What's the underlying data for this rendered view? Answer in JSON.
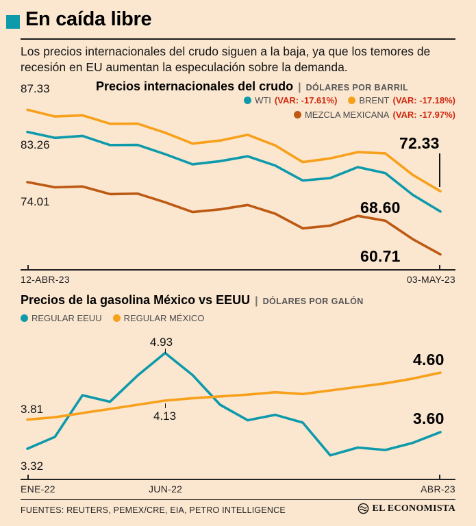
{
  "page": {
    "background": "#fbe7d0",
    "accent_teal": "#0e9aab",
    "accent_orange": "#f7a01b",
    "accent_brown": "#bc5a14",
    "accent_red": "#cf2a0e"
  },
  "header": {
    "title": "En caída libre",
    "subtitle": "Los precios internacionales del crudo siguen a la baja, ya que los temores de recesión en EU aumentan la especulación sobre la demanda."
  },
  "chart_data": [
    {
      "type": "line",
      "title": "Precios internacionales del crudo",
      "separator": "|",
      "unit": "DÓLARES POR BARRIL",
      "x_axis": {
        "first": "12-ABR-23",
        "last": "03-MAY-23"
      },
      "ylim": [
        59.5,
        88.5
      ],
      "grid": false,
      "legend_position": "top-right",
      "series": [
        {
          "name": "WTI",
          "var": "(VAR: -17.61%)",
          "color": "#0e9aab",
          "first_label": "83.26",
          "last_label": "68.60",
          "values": [
            83.26,
            82.16,
            82.52,
            80.83,
            80.86,
            79.16,
            77.29,
            77.87,
            78.76,
            77.07,
            74.3,
            74.76,
            76.78,
            75.66,
            71.66,
            68.6
          ]
        },
        {
          "name": "BRENT",
          "var": "(VAR: -17.18%)",
          "color": "#f7a01b",
          "first_label": "87.33",
          "last_label": "72.33",
          "values": [
            87.33,
            86.09,
            86.31,
            84.76,
            84.77,
            83.12,
            81.1,
            81.66,
            82.73,
            80.77,
            77.69,
            78.37,
            79.54,
            79.31,
            75.32,
            72.33
          ]
        },
        {
          "name": "MEZCLA MEXICANA",
          "var": "(VAR: -17.97%)",
          "color": "#bc5a14",
          "first_label": "74.01",
          "last_label": "60.71",
          "values": [
            74.01,
            73.05,
            73.2,
            71.8,
            71.9,
            70.3,
            68.5,
            69.0,
            69.8,
            68.2,
            65.5,
            66.0,
            67.8,
            66.9,
            63.5,
            60.71
          ]
        }
      ]
    },
    {
      "type": "line",
      "title": "Precios de la gasolina México vs EEUU",
      "separator": "|",
      "unit": "DÓLARES POR GALÓN",
      "x_ticks": [
        "ENE-22",
        "JUN-22",
        "ABR-23"
      ],
      "ylim": [
        3.15,
        5.05
      ],
      "grid": false,
      "legend_position": "top-left",
      "series": [
        {
          "name": "REGULAR EEUU",
          "color": "#0e9aab",
          "values": [
            3.32,
            3.52,
            4.22,
            4.11,
            4.55,
            4.93,
            4.56,
            4.06,
            3.8,
            3.89,
            3.76,
            3.21,
            3.34,
            3.3,
            3.42,
            3.6
          ]
        },
        {
          "name": "REGULAR MÉXICO",
          "color": "#f7a01b",
          "values": [
            3.81,
            3.85,
            3.92,
            3.99,
            4.06,
            4.13,
            4.17,
            4.2,
            4.23,
            4.27,
            4.24,
            4.3,
            4.36,
            4.42,
            4.5,
            4.6
          ]
        }
      ],
      "annotations": {
        "eeuu_first": "3.32",
        "eeuu_peak": "4.93",
        "eeuu_last": "3.60",
        "mexico_first": "3.81",
        "mexico_jun": "4.13",
        "mexico_last": "4.60"
      }
    }
  ],
  "footer": {
    "sources": "FUENTES: REUTERS, PEMEX/CRE, EIA, PETRO INTELLIGENCE",
    "brand": "EL ECONOMISTA"
  }
}
